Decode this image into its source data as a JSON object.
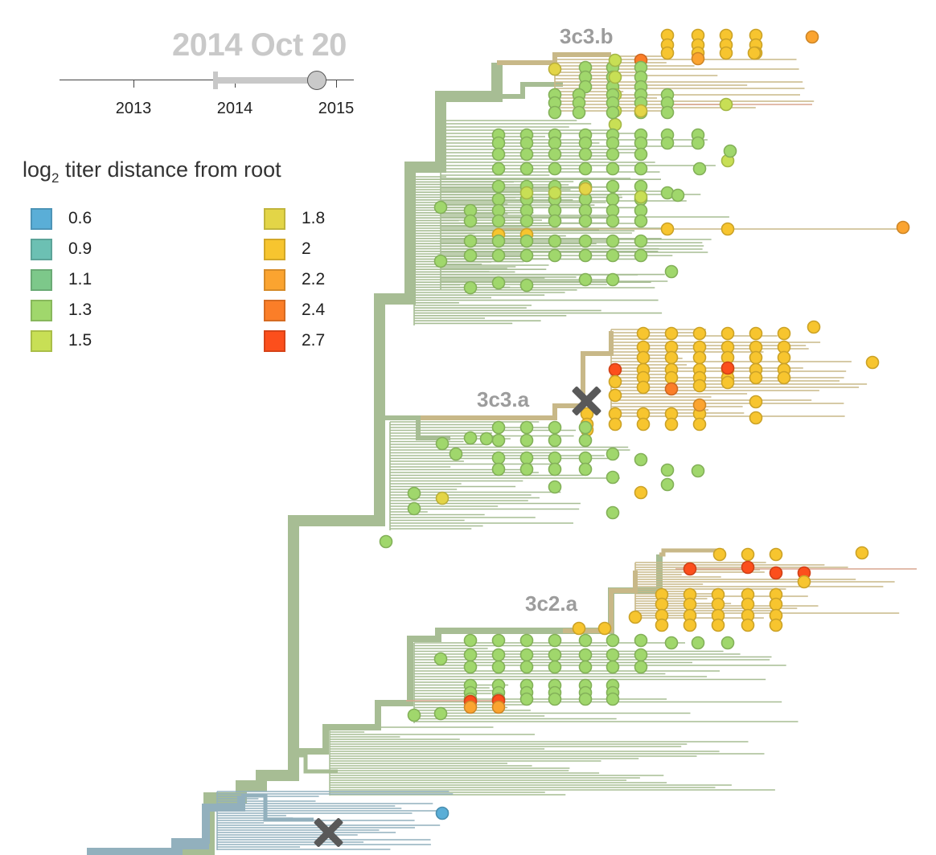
{
  "date_label": "2014 Oct 20",
  "timeline": {
    "ticks": [
      "2013",
      "2014",
      "2015"
    ],
    "selected_start": "2013 Nov",
    "selected_end": "2014 Oct 20"
  },
  "legend": {
    "title_main": "log",
    "title_sub": "2",
    "title_rest": " titer distance from root",
    "items": [
      {
        "label": "0.6",
        "color": "#5aaed7"
      },
      {
        "label": "0.9",
        "color": "#6cc0b3"
      },
      {
        "label": "1.1",
        "color": "#7dc88a"
      },
      {
        "label": "1.3",
        "color": "#a0d76c"
      },
      {
        "label": "1.5",
        "color": "#c8df55"
      },
      {
        "label": "1.8",
        "color": "#e3d547"
      },
      {
        "label": "2",
        "color": "#f7c52f"
      },
      {
        "label": "2.2",
        "color": "#fba430"
      },
      {
        "label": "2.4",
        "color": "#fb7e28"
      },
      {
        "label": "2.7",
        "color": "#fc4f1c"
      }
    ]
  },
  "clades": [
    {
      "label": "3c3.b"
    },
    {
      "label": "3c3.a"
    },
    {
      "label": "3c2.a"
    }
  ],
  "colors": {
    "branch_green": "#a7bd94",
    "branch_blue": "#92b0bd",
    "branch_tan": "#c8b888",
    "branch_orange": "#d9a58f",
    "marker": "#595959"
  }
}
